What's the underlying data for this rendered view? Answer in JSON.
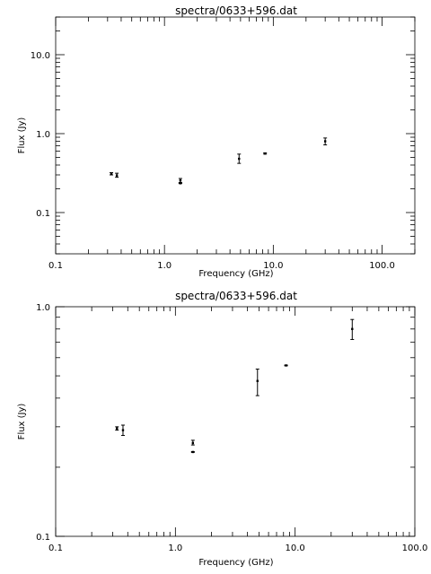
{
  "chart_data": [
    {
      "type": "scatter",
      "title": "spectra/0633+596.dat",
      "xlabel": "Frequency (GHz)",
      "ylabel": "Flux (Jy)",
      "xscale": "log",
      "yscale": "log",
      "xlim": [
        0.1,
        200.0
      ],
      "ylim": [
        0.03,
        30.0
      ],
      "xticks": [
        0.1,
        1.0,
        10.0,
        100.0
      ],
      "xtick_labels": [
        "0.1",
        "1.0",
        "10.0",
        "100.0"
      ],
      "yticks": [
        0.1,
        1.0,
        10.0
      ],
      "ytick_labels": [
        "0.1",
        "1.0",
        "10.0"
      ],
      "grid": false,
      "points": [
        {
          "x": 0.325,
          "y": 0.31,
          "yerr_low": 0.3,
          "yerr_high": 0.32
        },
        {
          "x": 0.365,
          "y": 0.295,
          "yerr_low": 0.28,
          "yerr_high": 0.315
        },
        {
          "x": 1.4,
          "y": 0.255,
          "yerr_low": 0.24,
          "yerr_high": 0.27
        },
        {
          "x": 1.4,
          "y": 0.235,
          "yerr_low": 0.233,
          "yerr_high": 0.237
        },
        {
          "x": 4.85,
          "y": 0.48,
          "yerr_low": 0.42,
          "yerr_high": 0.55
        },
        {
          "x": 8.4,
          "y": 0.56,
          "yerr_low": 0.55,
          "yerr_high": 0.57
        },
        {
          "x": 30.0,
          "y": 0.8,
          "yerr_low": 0.72,
          "yerr_high": 0.88
        }
      ]
    },
    {
      "type": "scatter",
      "title": "spectra/0633+596.dat",
      "xlabel": "Frequency (GHz)",
      "ylabel": "Flux (Jy)",
      "xscale": "log",
      "yscale": "log",
      "xlim": [
        0.1,
        100.0
      ],
      "ylim": [
        0.1,
        1.0
      ],
      "xticks": [
        0.1,
        1.0,
        10.0,
        100.0
      ],
      "xtick_labels": [
        "0.1",
        "1.0",
        "10.0",
        "100.0"
      ],
      "yticks": [
        0.1,
        1.0
      ],
      "ytick_labels": [
        "0.1",
        "1.0"
      ],
      "grid": false,
      "points": [
        {
          "x": 0.325,
          "y": 0.295,
          "yerr_low": 0.29,
          "yerr_high": 0.3
        },
        {
          "x": 0.365,
          "y": 0.29,
          "yerr_low": 0.275,
          "yerr_high": 0.305
        },
        {
          "x": 1.4,
          "y": 0.255,
          "yerr_low": 0.25,
          "yerr_high": 0.262
        },
        {
          "x": 1.4,
          "y": 0.233,
          "yerr_low": 0.232,
          "yerr_high": 0.234
        },
        {
          "x": 4.85,
          "y": 0.475,
          "yerr_low": 0.41,
          "yerr_high": 0.535
        },
        {
          "x": 8.4,
          "y": 0.555,
          "yerr_low": 0.553,
          "yerr_high": 0.557
        },
        {
          "x": 30.0,
          "y": 0.8,
          "yerr_low": 0.72,
          "yerr_high": 0.88
        }
      ]
    }
  ]
}
